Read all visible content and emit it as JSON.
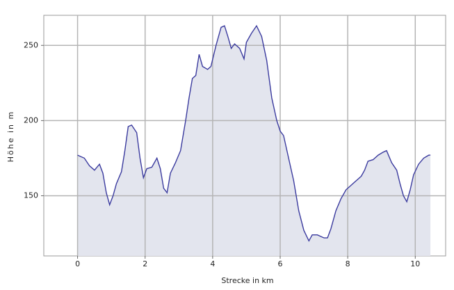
{
  "chart_data": {
    "type": "area",
    "x_label": "Strecke in km",
    "y_label": "Höhe in m",
    "x": [
      0,
      0.2,
      0.35,
      0.5,
      0.65,
      0.75,
      0.85,
      0.95,
      1.05,
      1.15,
      1.3,
      1.4,
      1.5,
      1.6,
      1.75,
      1.85,
      1.95,
      2.05,
      2.2,
      2.35,
      2.45,
      2.55,
      2.65,
      2.75,
      2.9,
      3.05,
      3.2,
      3.3,
      3.4,
      3.5,
      3.6,
      3.7,
      3.85,
      3.95,
      4.1,
      4.25,
      4.35,
      4.45,
      4.55,
      4.65,
      4.8,
      4.93,
      5.0,
      5.15,
      5.3,
      5.45,
      5.6,
      5.75,
      5.9,
      6.0,
      6.1,
      6.25,
      6.4,
      6.55,
      6.7,
      6.85,
      6.95,
      7.1,
      7.3,
      7.4,
      7.5,
      7.65,
      7.8,
      7.95,
      8.1,
      8.25,
      8.4,
      8.5,
      8.6,
      8.75,
      8.9,
      9.05,
      9.15,
      9.3,
      9.45,
      9.55,
      9.65,
      9.75,
      9.85,
      9.95,
      10.1,
      10.25,
      10.4,
      10.45
    ],
    "series": [
      {
        "color": "#3a3a9e",
        "fill": "#e3e5ee",
        "values": [
          177,
          175,
          170,
          167,
          171,
          165,
          152,
          144,
          150,
          158,
          166,
          180,
          196,
          197,
          192,
          175,
          162,
          168,
          169,
          175,
          168,
          155,
          152,
          165,
          172,
          180,
          200,
          215,
          228,
          230,
          244,
          236,
          234,
          236,
          250,
          262,
          263,
          256,
          248,
          251,
          248,
          241,
          252,
          258,
          263,
          256,
          240,
          215,
          200,
          193,
          190,
          175,
          160,
          140,
          127,
          120,
          124,
          124,
          122,
          122,
          128,
          140,
          148,
          154,
          157,
          160,
          163,
          167,
          173,
          174,
          177,
          179,
          180,
          172,
          167,
          158,
          150,
          146,
          154,
          164,
          171,
          175,
          177,
          177
        ]
      }
    ],
    "xlim": [
      -1,
      10.9
    ],
    "ylim": [
      110,
      270
    ],
    "xticks": [
      0,
      2,
      4,
      6,
      8,
      10
    ],
    "yticks": [
      150,
      200,
      250
    ],
    "grid": true
  }
}
